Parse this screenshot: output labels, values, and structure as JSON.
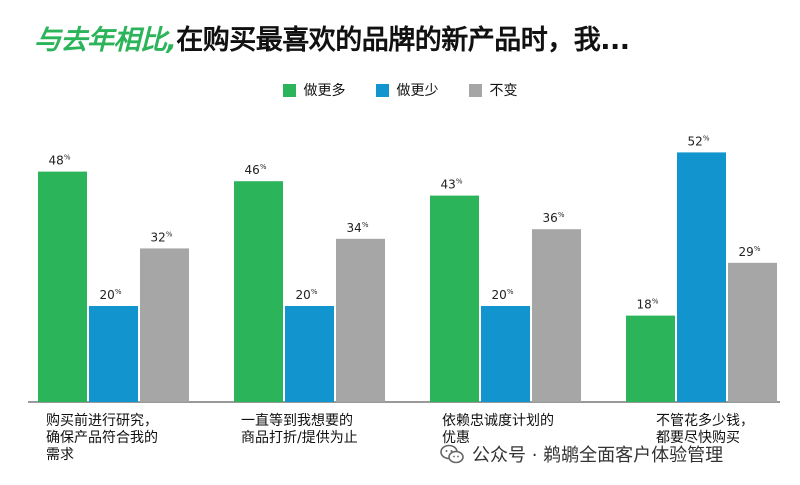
{
  "title": {
    "accent": "与去年相比,",
    "main": "在购买最喜欢的品牌的新产品时，我..."
  },
  "chart_data": {
    "type": "bar",
    "title": "与去年相比，在购买最喜欢的品牌的新产品时，我...",
    "categories": [
      "购买前进行研究，\n确保产品符合我的\n需求",
      "一直等到我想要的\n商品打折/提供为止",
      "依赖忠诚度计划的\n优惠",
      "不管花多少钱，\n都要尽快购买"
    ],
    "series": [
      {
        "name": "做更多",
        "color": "#2cb45a",
        "values": [
          48,
          46,
          43,
          18
        ]
      },
      {
        "name": "做更少",
        "color": "#1295cf",
        "values": [
          20,
          20,
          20,
          52
        ]
      },
      {
        "name": "不变",
        "color": "#a6a6a6",
        "values": [
          32,
          34,
          36,
          29
        ]
      }
    ],
    "value_suffix": "%",
    "ylim": [
      0,
      55
    ],
    "legend_position": "top-center"
  },
  "watermark": {
    "text": "公众号 · 鹈鹕全面客户体验管理"
  }
}
